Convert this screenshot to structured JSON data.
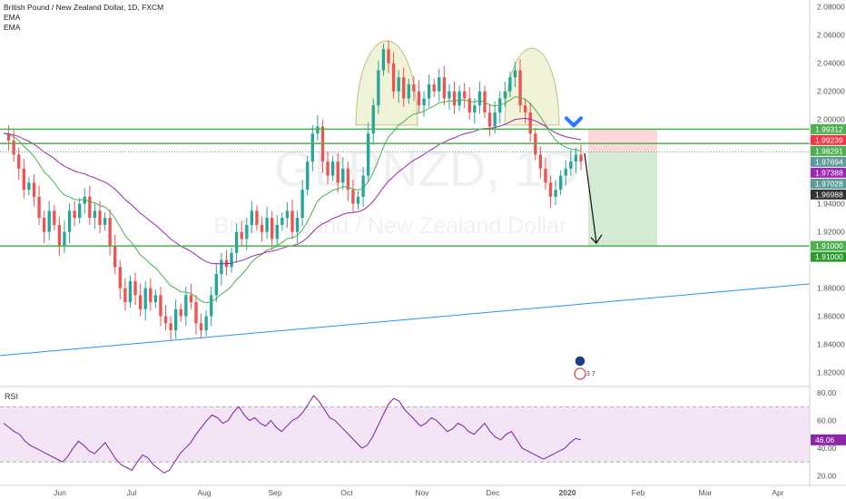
{
  "legend": {
    "symbol_line": "British Pound / New Zealand Dollar, 1D, FXCM",
    "ema1": "EMA",
    "ema2": "EMA"
  },
  "watermark": {
    "ticker": "GBPNZD, 1D",
    "name": "British Pound / New Zealand Dollar"
  },
  "rsi_panel": {
    "label": "RSI",
    "value_tag": "46.06",
    "axis_ticks": [
      "80.00",
      "60.00",
      "40.00",
      "20.00"
    ]
  },
  "price_axis_ticks": [
    "2.08000",
    "2.06000",
    "2.04000",
    "2.02000",
    "2.00000",
    "1.94000",
    "1.92000",
    "1.88000",
    "1.86000",
    "1.84000",
    "1.82000"
  ],
  "price_tags": [
    {
      "text": "1.99312",
      "color": "#4caf50"
    },
    {
      "text": "1.99239",
      "color": "#f23645"
    },
    {
      "text": "1.98291",
      "color": "#4caf50"
    },
    {
      "text": "1.97694",
      "color": "#5d9b9b"
    },
    {
      "text": "1.97388",
      "color": "#9c27b0"
    },
    {
      "text": "1.97028",
      "color": "#5d9b9b"
    },
    {
      "text": "1.96988",
      "color": "#333333"
    },
    {
      "text": "1.91000",
      "color": "#4caf50"
    },
    {
      "text": "1.91000",
      "color": "#2e9a2e"
    }
  ],
  "time_axis_ticks": [
    "Jun",
    "Jul",
    "Aug",
    "Sep",
    "Oct",
    "Nov",
    "Dec",
    "2020",
    "Feb",
    "Mar",
    "Apr"
  ],
  "event_badge": "3 7",
  "colors": {
    "bull": "#26a69a",
    "bear": "#ef5350",
    "ema_fast": "#4caf50",
    "ema_slow": "#9c27b0",
    "levels": "#4caf50",
    "trendline": "#2196f3",
    "rsi": "#7b1fa2",
    "rsi_band": "#f3e5f5",
    "shoulder_fill": "#f1f3d8",
    "shoulder_stroke": "#b8c47a",
    "stop_zone": "#ffcdd2",
    "target_zone": "#c8e6c9",
    "arrow_blue": "#2979ff"
  },
  "chart_data": {
    "type": "candlestick",
    "symbol": "British Pound / New Zealand Dollar",
    "timeframe": "1D",
    "source": "FXCM",
    "ylim": [
      1.81,
      2.085
    ],
    "horizontal_levels": [
      1.9931,
      1.9829,
      1.91
    ],
    "position": {
      "entry": 1.9769,
      "stop": 1.9931,
      "target": 1.91
    },
    "trendline": {
      "from_price": 1.832,
      "to_price": 1.883
    },
    "close_path": [
      1.99,
      1.985,
      1.975,
      1.965,
      1.95,
      1.955,
      1.945,
      1.93,
      1.92,
      1.935,
      1.925,
      1.91,
      1.92,
      1.935,
      1.93,
      1.94,
      1.945,
      1.93,
      1.935,
      1.925,
      1.93,
      1.91,
      1.895,
      1.88,
      1.87,
      1.885,
      1.875,
      1.865,
      1.88,
      1.87,
      1.875,
      1.86,
      1.855,
      1.85,
      1.865,
      1.86,
      1.875,
      1.87,
      1.855,
      1.85,
      1.86,
      1.875,
      1.89,
      1.9,
      1.895,
      1.905,
      1.92,
      1.915,
      1.925,
      1.935,
      1.925,
      1.92,
      1.93,
      1.915,
      1.925,
      1.93,
      1.935,
      1.92,
      1.93,
      1.95,
      1.97,
      1.99,
      1.995,
      1.97,
      1.96,
      1.97,
      1.955,
      1.965,
      1.95,
      1.94,
      1.945,
      1.96,
      1.99,
      2.01,
      2.035,
      2.05,
      2.04,
      2.02,
      2.03,
      2.015,
      2.025,
      2.02,
      2.01,
      2.015,
      2.025,
      2.02,
      2.03,
      2.015,
      2.02,
      2.01,
      2.02,
      2.015,
      2.005,
      2.01,
      2.02,
      2.005,
      1.995,
      2.005,
      2.015,
      2.02,
      2.03,
      2.035,
      2.01,
      2.005,
      1.99,
      1.975,
      1.965,
      1.955,
      1.945,
      1.95,
      1.96,
      1.965,
      1.97,
      1.975,
      1.97
    ],
    "rsi_ylim": [
      15,
      82
    ],
    "rsi_bands": [
      70,
      30
    ],
    "rsi_path": [
      58,
      55,
      52,
      50,
      45,
      42,
      40,
      38,
      36,
      34,
      32,
      30,
      34,
      40,
      45,
      42,
      38,
      36,
      40,
      44,
      38,
      32,
      28,
      26,
      24,
      30,
      35,
      33,
      28,
      25,
      22,
      24,
      30,
      36,
      40,
      44,
      50,
      55,
      60,
      64,
      62,
      58,
      60,
      66,
      70,
      64,
      60,
      62,
      58,
      56,
      60,
      55,
      52,
      56,
      60,
      62,
      66,
      72,
      78,
      74,
      68,
      62,
      60,
      56,
      52,
      48,
      44,
      40,
      42,
      48,
      56,
      64,
      72,
      76,
      74,
      68,
      64,
      60,
      56,
      58,
      62,
      60,
      56,
      52,
      54,
      58,
      56,
      52,
      50,
      54,
      58,
      52,
      48,
      46,
      50,
      52,
      46,
      40,
      38,
      36,
      34,
      32,
      34,
      36,
      38,
      40,
      44,
      47,
      46
    ]
  }
}
